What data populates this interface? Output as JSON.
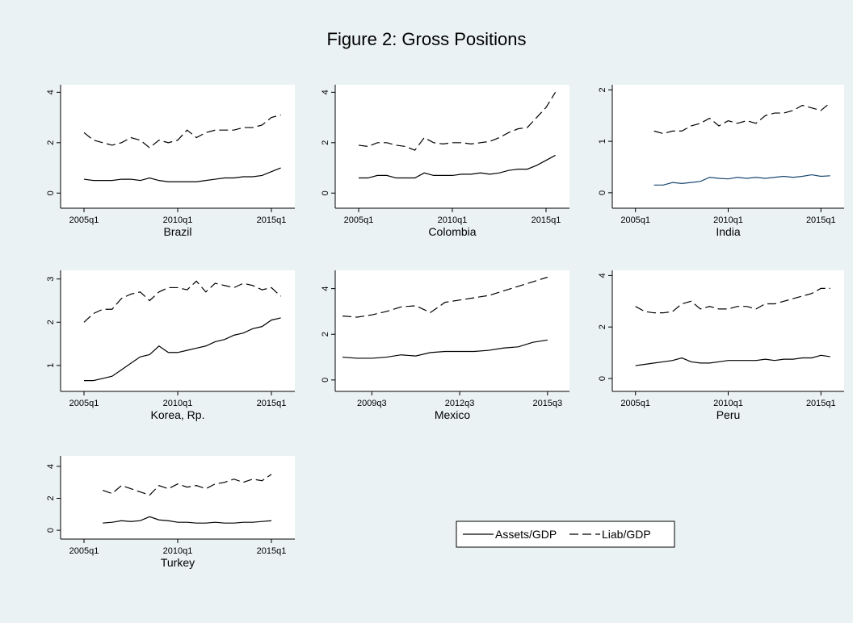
{
  "title": "Figure 2: Gross Positions",
  "legend": [
    {
      "name": "Assets/GDP",
      "dash": "solid"
    },
    {
      "name": "Liab/GDP",
      "dash": "dashed"
    }
  ],
  "chart_data": [
    {
      "type": "line",
      "title": "Brazil",
      "xlim": [
        "2003q4",
        "2016q2"
      ],
      "xticks": [
        "2005q1",
        "2010q1",
        "2015q1"
      ],
      "ylim": [
        -0.6,
        4.3
      ],
      "yticks": [
        0,
        2,
        4
      ],
      "x": [
        "2005q1",
        "2005q3",
        "2006q1",
        "2006q3",
        "2007q1",
        "2007q3",
        "2008q1",
        "2008q3",
        "2009q1",
        "2009q3",
        "2010q1",
        "2010q3",
        "2011q1",
        "2011q3",
        "2012q1",
        "2012q3",
        "2013q1",
        "2013q3",
        "2014q1",
        "2014q3",
        "2015q1",
        "2015q3"
      ],
      "series": [
        {
          "color": "#000000",
          "values": [
            0.55,
            0.5,
            0.5,
            0.5,
            0.55,
            0.55,
            0.5,
            0.6,
            0.5,
            0.45,
            0.45,
            0.45,
            0.45,
            0.5,
            0.55,
            0.6,
            0.6,
            0.65,
            0.65,
            0.7,
            0.85,
            1.0
          ]
        },
        {
          "color": "#000000",
          "values": [
            2.4,
            2.1,
            2.0,
            1.9,
            2.0,
            2.2,
            2.1,
            1.8,
            2.1,
            2.0,
            2.1,
            2.5,
            2.2,
            2.4,
            2.5,
            2.5,
            2.5,
            2.6,
            2.6,
            2.7,
            3.0,
            3.1
          ]
        }
      ]
    },
    {
      "type": "line",
      "title": "Colombia",
      "xlim": [
        "2003q4",
        "2016q2"
      ],
      "xticks": [
        "2005q1",
        "2010q1",
        "2015q1"
      ],
      "ylim": [
        -0.6,
        4.3
      ],
      "yticks": [
        0,
        2,
        4
      ],
      "x": [
        "2005q1",
        "2005q3",
        "2006q1",
        "2006q3",
        "2007q1",
        "2007q3",
        "2008q1",
        "2008q3",
        "2009q1",
        "2009q3",
        "2010q1",
        "2010q3",
        "2011q1",
        "2011q3",
        "2012q1",
        "2012q3",
        "2013q1",
        "2013q3",
        "2014q1",
        "2014q3",
        "2015q1",
        "2015q3"
      ],
      "series": [
        {
          "color": "#000000",
          "values": [
            0.6,
            0.6,
            0.7,
            0.7,
            0.6,
            0.6,
            0.6,
            0.8,
            0.7,
            0.7,
            0.7,
            0.75,
            0.75,
            0.8,
            0.75,
            0.8,
            0.9,
            0.95,
            0.95,
            1.1,
            1.3,
            1.5
          ]
        },
        {
          "color": "#000000",
          "values": [
            1.9,
            1.85,
            2.0,
            2.0,
            1.9,
            1.85,
            1.7,
            2.2,
            2.0,
            1.95,
            2.0,
            2.0,
            1.95,
            2.0,
            2.05,
            2.2,
            2.4,
            2.55,
            2.6,
            3.0,
            3.4,
            4.0
          ]
        }
      ]
    },
    {
      "type": "line",
      "title": "India",
      "xlim": [
        "2003q4",
        "2016q2"
      ],
      "xticks": [
        "2005q1",
        "2010q1",
        "2015q1"
      ],
      "ylim": [
        -0.3,
        2.1
      ],
      "yticks": [
        0,
        1,
        2
      ],
      "x": [
        "2006q1",
        "2006q3",
        "2007q1",
        "2007q3",
        "2008q1",
        "2008q3",
        "2009q1",
        "2009q3",
        "2010q1",
        "2010q3",
        "2011q1",
        "2011q3",
        "2012q1",
        "2012q3",
        "2013q1",
        "2013q3",
        "2014q1",
        "2014q3",
        "2015q1",
        "2015q3"
      ],
      "series": [
        {
          "color": "#1a476f",
          "values": [
            0.15,
            0.15,
            0.2,
            0.18,
            0.2,
            0.22,
            0.3,
            0.28,
            0.27,
            0.3,
            0.28,
            0.3,
            0.28,
            0.3,
            0.32,
            0.3,
            0.32,
            0.35,
            0.32,
            0.33
          ]
        },
        {
          "color": "#000000",
          "values": [
            1.2,
            1.15,
            1.2,
            1.2,
            1.3,
            1.35,
            1.45,
            1.3,
            1.4,
            1.35,
            1.4,
            1.35,
            1.5,
            1.55,
            1.55,
            1.6,
            1.7,
            1.65,
            1.6,
            1.75
          ]
        }
      ]
    },
    {
      "type": "line",
      "title": "Korea, Rp.",
      "xlim": [
        "2003q4",
        "2016q2"
      ],
      "xticks": [
        "2005q1",
        "2010q1",
        "2015q1"
      ],
      "ylim": [
        0.4,
        3.2
      ],
      "yticks": [
        1,
        2,
        3
      ],
      "x": [
        "2005q1",
        "2005q3",
        "2006q1",
        "2006q3",
        "2007q1",
        "2007q3",
        "2008q1",
        "2008q3",
        "2009q1",
        "2009q3",
        "2010q1",
        "2010q3",
        "2011q1",
        "2011q3",
        "2012q1",
        "2012q3",
        "2013q1",
        "2013q3",
        "2014q1",
        "2014q3",
        "2015q1",
        "2015q3"
      ],
      "series": [
        {
          "color": "#000000",
          "values": [
            0.65,
            0.65,
            0.7,
            0.75,
            0.9,
            1.05,
            1.2,
            1.25,
            1.45,
            1.3,
            1.3,
            1.35,
            1.4,
            1.45,
            1.55,
            1.6,
            1.7,
            1.75,
            1.85,
            1.9,
            2.05,
            2.1
          ]
        },
        {
          "color": "#000000",
          "values": [
            2.0,
            2.2,
            2.3,
            2.3,
            2.55,
            2.65,
            2.7,
            2.5,
            2.7,
            2.8,
            2.8,
            2.75,
            2.95,
            2.7,
            2.9,
            2.85,
            2.8,
            2.9,
            2.85,
            2.75,
            2.8,
            2.6
          ]
        }
      ]
    },
    {
      "type": "line",
      "title": "Mexico",
      "xlim": [
        "2008q2",
        "2016q2"
      ],
      "xticks": [
        "2009q3",
        "2012q3",
        "2015q3"
      ],
      "ylim": [
        -0.5,
        4.8
      ],
      "yticks": [
        0,
        2,
        4
      ],
      "x": [
        "2008q3",
        "2009q1",
        "2009q3",
        "2010q1",
        "2010q3",
        "2011q1",
        "2011q3",
        "2012q1",
        "2012q3",
        "2013q1",
        "2013q3",
        "2014q1",
        "2014q3",
        "2015q1",
        "2015q3"
      ],
      "series": [
        {
          "color": "#000000",
          "values": [
            1.0,
            0.95,
            0.95,
            1.0,
            1.1,
            1.05,
            1.2,
            1.25,
            1.25,
            1.25,
            1.3,
            1.4,
            1.45,
            1.65,
            1.75
          ]
        },
        {
          "color": "#000000",
          "values": [
            2.8,
            2.75,
            2.85,
            3.0,
            3.2,
            3.25,
            2.95,
            3.4,
            3.5,
            3.6,
            3.7,
            3.9,
            4.1,
            4.3,
            4.5
          ]
        }
      ]
    },
    {
      "type": "line",
      "title": "Peru",
      "xlim": [
        "2003q4",
        "2016q2"
      ],
      "xticks": [
        "2005q1",
        "2010q1",
        "2015q1"
      ],
      "ylim": [
        -0.5,
        4.2
      ],
      "yticks": [
        0,
        2,
        4
      ],
      "x": [
        "2005q1",
        "2005q3",
        "2006q1",
        "2006q3",
        "2007q1",
        "2007q3",
        "2008q1",
        "2008q3",
        "2009q1",
        "2009q3",
        "2010q1",
        "2010q3",
        "2011q1",
        "2011q3",
        "2012q1",
        "2012q3",
        "2013q1",
        "2013q3",
        "2014q1",
        "2014q3",
        "2015q1",
        "2015q3"
      ],
      "series": [
        {
          "color": "#000000",
          "values": [
            0.5,
            0.55,
            0.6,
            0.65,
            0.7,
            0.8,
            0.65,
            0.6,
            0.6,
            0.65,
            0.7,
            0.7,
            0.7,
            0.7,
            0.75,
            0.7,
            0.75,
            0.75,
            0.8,
            0.8,
            0.9,
            0.85
          ]
        },
        {
          "color": "#000000",
          "values": [
            2.8,
            2.6,
            2.55,
            2.55,
            2.6,
            2.9,
            3.0,
            2.7,
            2.8,
            2.7,
            2.7,
            2.8,
            2.8,
            2.7,
            2.9,
            2.9,
            3.0,
            3.1,
            3.2,
            3.3,
            3.5,
            3.5
          ]
        }
      ]
    },
    {
      "type": "line",
      "title": "Turkey",
      "xlim": [
        "2003q4",
        "2016q2"
      ],
      "xticks": [
        "2005q1",
        "2010q1",
        "2015q1"
      ],
      "ylim": [
        -0.55,
        4.65
      ],
      "yticks": [
        0,
        2,
        4
      ],
      "x": [
        "2006q1",
        "2006q3",
        "2007q1",
        "2007q3",
        "2008q1",
        "2008q3",
        "2009q1",
        "2009q3",
        "2010q1",
        "2010q3",
        "2011q1",
        "2011q3",
        "2012q1",
        "2012q3",
        "2013q1",
        "2013q3",
        "2014q1",
        "2014q3",
        "2015q1"
      ],
      "series": [
        {
          "color": "#000000",
          "values": [
            0.45,
            0.5,
            0.6,
            0.55,
            0.6,
            0.85,
            0.65,
            0.6,
            0.5,
            0.5,
            0.45,
            0.45,
            0.5,
            0.45,
            0.45,
            0.5,
            0.5,
            0.55,
            0.6
          ]
        },
        {
          "color": "#000000",
          "values": [
            2.5,
            2.3,
            2.8,
            2.6,
            2.4,
            2.2,
            2.8,
            2.6,
            2.9,
            2.7,
            2.8,
            2.6,
            2.9,
            3.0,
            3.2,
            3.0,
            3.2,
            3.1,
            3.5
          ]
        }
      ]
    }
  ]
}
